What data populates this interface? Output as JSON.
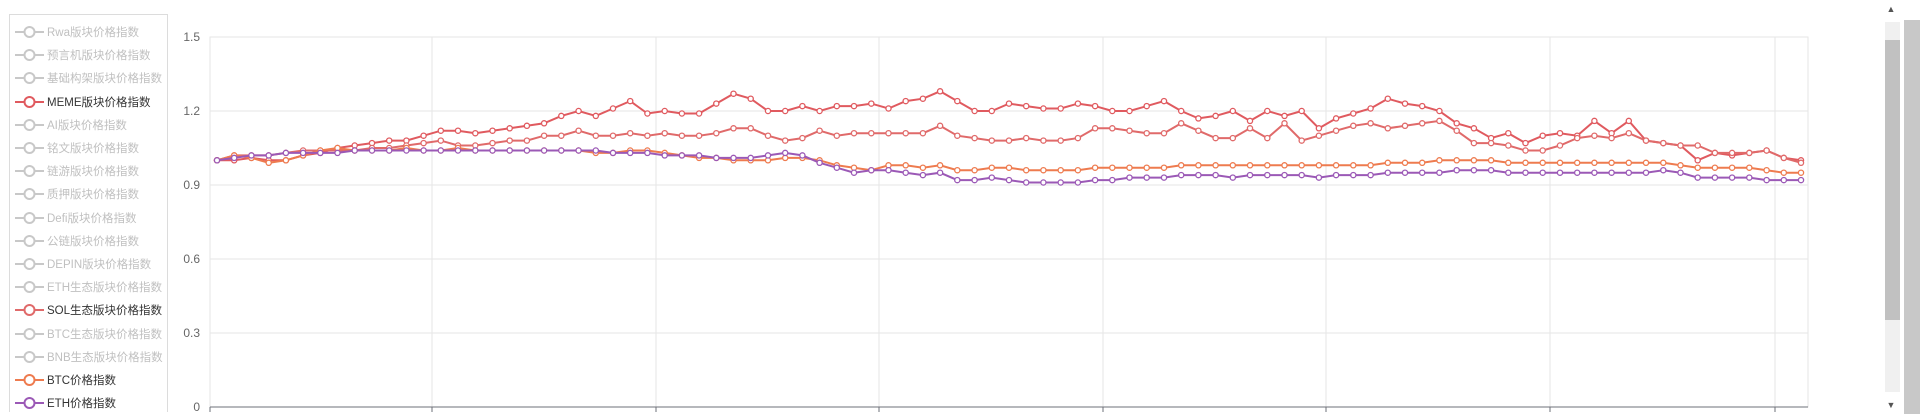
{
  "legend": {
    "items": [
      {
        "label": "Rwa版块价格指数",
        "color": "#c8c8c8",
        "active": false
      },
      {
        "label": "预言机版块价格指数",
        "color": "#c8c8c8",
        "active": false
      },
      {
        "label": "基础构架版块价格指数",
        "color": "#c8c8c8",
        "active": false
      },
      {
        "label": "MEME版块价格指数",
        "color": "#e05a5f",
        "active": true
      },
      {
        "label": "AI版块价格指数",
        "color": "#c8c8c8",
        "active": false
      },
      {
        "label": "铭文版块价格指数",
        "color": "#c8c8c8",
        "active": false
      },
      {
        "label": "链游版块价格指数",
        "color": "#c8c8c8",
        "active": false
      },
      {
        "label": "质押版块价格指数",
        "color": "#c8c8c8",
        "active": false
      },
      {
        "label": "Defi版块价格指数",
        "color": "#c8c8c8",
        "active": false
      },
      {
        "label": "公链版块价格指数",
        "color": "#c8c8c8",
        "active": false
      },
      {
        "label": "DEPIN版块价格指数",
        "color": "#c8c8c8",
        "active": false
      },
      {
        "label": "ETH生态版块价格指数",
        "color": "#c8c8c8",
        "active": false
      },
      {
        "label": "SOL生态版块价格指数",
        "color": "#e06a6a",
        "active": true
      },
      {
        "label": "BTC生态版块价格指数",
        "color": "#c8c8c8",
        "active": false
      },
      {
        "label": "BNB生态版块价格指数",
        "color": "#c8c8c8",
        "active": false
      },
      {
        "label": "BTC价格指数",
        "color": "#ee7b4f",
        "active": true
      },
      {
        "label": "ETH价格指数",
        "color": "#9b59b6",
        "active": true
      }
    ]
  },
  "scrollbar": {
    "up_icon": "▲",
    "down_icon": "▼"
  },
  "chart_data": {
    "type": "line",
    "ylim": [
      0,
      1.5
    ],
    "yticks": [
      "1.5",
      "1.2",
      "0.9",
      "0.6",
      "0.3",
      "0"
    ],
    "grid": true,
    "legend_position": "left",
    "series": [
      {
        "name": "MEME版块价格指数",
        "color": "#e05a5f",
        "values": [
          1.0,
          1.0,
          1.01,
          1.0,
          1.0,
          1.02,
          1.03,
          1.05,
          1.06,
          1.07,
          1.08,
          1.08,
          1.1,
          1.12,
          1.12,
          1.11,
          1.12,
          1.13,
          1.14,
          1.15,
          1.18,
          1.2,
          1.18,
          1.21,
          1.24,
          1.19,
          1.2,
          1.19,
          1.19,
          1.23,
          1.27,
          1.25,
          1.2,
          1.2,
          1.22,
          1.2,
          1.22,
          1.22,
          1.23,
          1.21,
          1.24,
          1.25,
          1.28,
          1.24,
          1.2,
          1.2,
          1.23,
          1.22,
          1.21,
          1.21,
          1.23,
          1.22,
          1.2,
          1.2,
          1.22,
          1.24,
          1.2,
          1.17,
          1.18,
          1.2,
          1.16,
          1.2,
          1.18,
          1.2,
          1.13,
          1.17,
          1.19,
          1.21,
          1.25,
          1.23,
          1.22,
          1.2,
          1.15,
          1.13,
          1.09,
          1.11,
          1.07,
          1.1,
          1.11,
          1.1,
          1.16,
          1.11,
          1.16,
          1.08,
          1.07,
          1.06,
          1.0,
          1.03,
          1.02,
          1.03,
          1.04,
          1.01,
          1.0
        ]
      },
      {
        "name": "SOL生态版块价格指数",
        "color": "#e06a6a",
        "values": [
          1.0,
          1.02,
          1.02,
          1.02,
          1.03,
          1.04,
          1.04,
          1.04,
          1.04,
          1.05,
          1.05,
          1.06,
          1.07,
          1.08,
          1.06,
          1.06,
          1.07,
          1.08,
          1.08,
          1.1,
          1.1,
          1.12,
          1.1,
          1.1,
          1.11,
          1.1,
          1.11,
          1.1,
          1.1,
          1.11,
          1.13,
          1.13,
          1.1,
          1.08,
          1.09,
          1.12,
          1.1,
          1.11,
          1.11,
          1.11,
          1.11,
          1.11,
          1.14,
          1.1,
          1.09,
          1.08,
          1.08,
          1.09,
          1.08,
          1.08,
          1.09,
          1.13,
          1.13,
          1.12,
          1.11,
          1.11,
          1.15,
          1.12,
          1.09,
          1.09,
          1.13,
          1.09,
          1.15,
          1.08,
          1.1,
          1.12,
          1.14,
          1.15,
          1.13,
          1.14,
          1.15,
          1.16,
          1.12,
          1.07,
          1.07,
          1.06,
          1.04,
          1.04,
          1.06,
          1.09,
          1.1,
          1.09,
          1.11,
          1.08,
          1.07,
          1.06,
          1.06,
          1.03,
          1.03,
          1.03,
          1.04,
          1.01,
          0.99
        ]
      },
      {
        "name": "BTC价格指数",
        "color": "#ee7b4f",
        "values": [
          1.0,
          1.02,
          1.01,
          0.99,
          1.0,
          1.02,
          1.04,
          1.05,
          1.04,
          1.04,
          1.04,
          1.05,
          1.04,
          1.04,
          1.05,
          1.04,
          1.04,
          1.04,
          1.04,
          1.04,
          1.04,
          1.04,
          1.03,
          1.03,
          1.04,
          1.04,
          1.03,
          1.02,
          1.01,
          1.01,
          1.0,
          1.0,
          1.0,
          1.01,
          1.01,
          1.0,
          0.98,
          0.97,
          0.96,
          0.98,
          0.98,
          0.97,
          0.98,
          0.96,
          0.96,
          0.97,
          0.97,
          0.96,
          0.96,
          0.96,
          0.96,
          0.97,
          0.97,
          0.97,
          0.97,
          0.97,
          0.98,
          0.98,
          0.98,
          0.98,
          0.98,
          0.98,
          0.98,
          0.98,
          0.98,
          0.98,
          0.98,
          0.98,
          0.99,
          0.99,
          0.99,
          1.0,
          1.0,
          1.0,
          1.0,
          0.99,
          0.99,
          0.99,
          0.99,
          0.99,
          0.99,
          0.99,
          0.99,
          0.99,
          0.99,
          0.98,
          0.97,
          0.97,
          0.97,
          0.97,
          0.96,
          0.95,
          0.95
        ]
      },
      {
        "name": "ETH价格指数",
        "color": "#9b59b6",
        "values": [
          1.0,
          1.01,
          1.02,
          1.02,
          1.03,
          1.03,
          1.03,
          1.03,
          1.04,
          1.04,
          1.04,
          1.04,
          1.04,
          1.04,
          1.04,
          1.04,
          1.04,
          1.04,
          1.04,
          1.04,
          1.04,
          1.04,
          1.04,
          1.03,
          1.03,
          1.03,
          1.02,
          1.02,
          1.02,
          1.01,
          1.01,
          1.01,
          1.02,
          1.03,
          1.02,
          0.99,
          0.97,
          0.95,
          0.96,
          0.96,
          0.95,
          0.94,
          0.95,
          0.92,
          0.92,
          0.93,
          0.92,
          0.91,
          0.91,
          0.91,
          0.91,
          0.92,
          0.92,
          0.93,
          0.93,
          0.93,
          0.94,
          0.94,
          0.94,
          0.93,
          0.94,
          0.94,
          0.94,
          0.94,
          0.93,
          0.94,
          0.94,
          0.94,
          0.95,
          0.95,
          0.95,
          0.95,
          0.96,
          0.96,
          0.96,
          0.95,
          0.95,
          0.95,
          0.95,
          0.95,
          0.95,
          0.95,
          0.95,
          0.95,
          0.96,
          0.95,
          0.93,
          0.93,
          0.93,
          0.93,
          0.92,
          0.92,
          0.92
        ]
      }
    ]
  }
}
